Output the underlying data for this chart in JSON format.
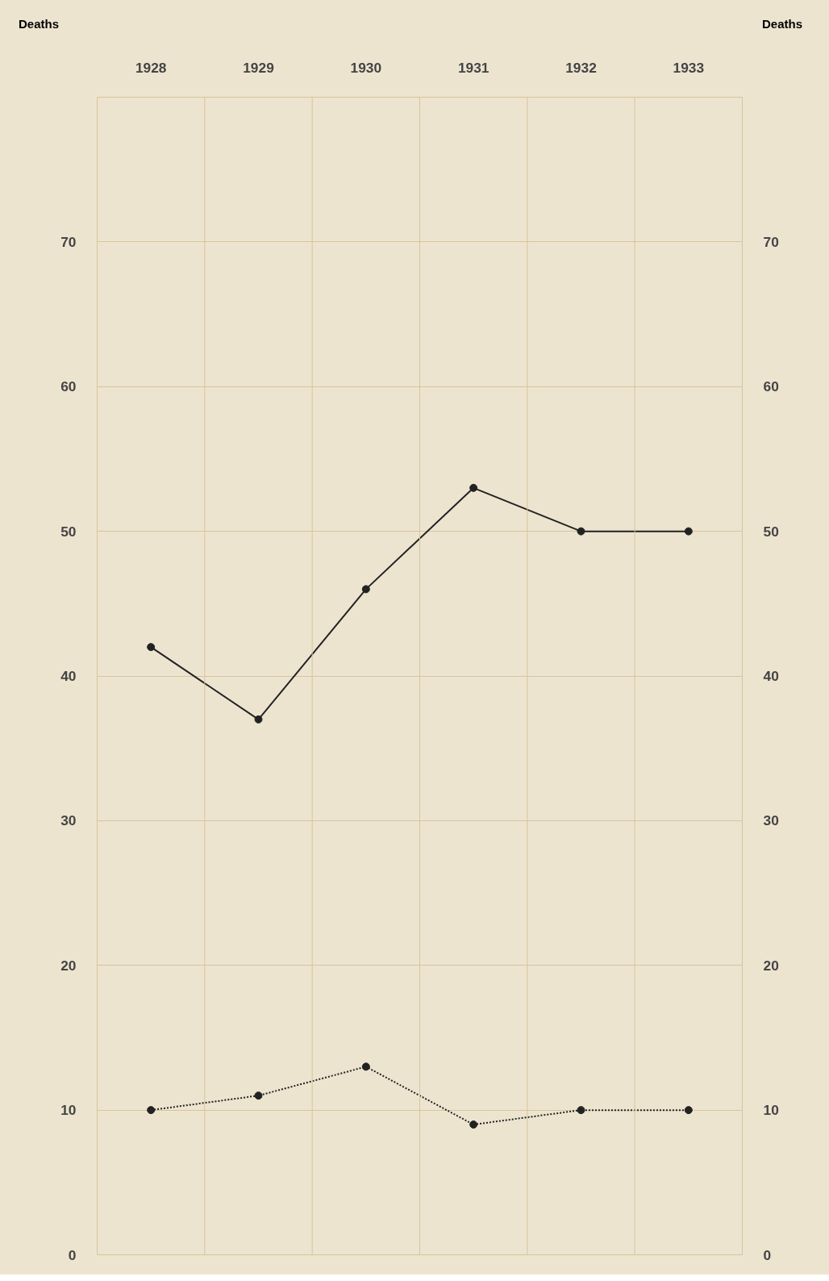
{
  "chart_data": {
    "type": "line",
    "ylabel": "Deaths",
    "y2label": "Deaths",
    "categories": [
      "1928",
      "1929",
      "1930",
      "1931",
      "1932",
      "1933"
    ],
    "series": [
      {
        "color": "#222222",
        "line_style": "solid",
        "values": [
          42,
          37,
          46,
          53,
          50,
          50
        ]
      },
      {
        "color": "#222222",
        "line_style": "dotted",
        "values": [
          10,
          11,
          13,
          9,
          10,
          10
        ]
      }
    ],
    "ylim": [
      0,
      80
    ],
    "yticks": [
      0,
      10,
      20,
      30,
      40,
      50,
      60,
      70
    ],
    "y2lim": [
      0,
      80
    ],
    "y2ticks": [
      0,
      10,
      20,
      30,
      40,
      50,
      60,
      70
    ],
    "grid": true,
    "marker": "circle"
  }
}
